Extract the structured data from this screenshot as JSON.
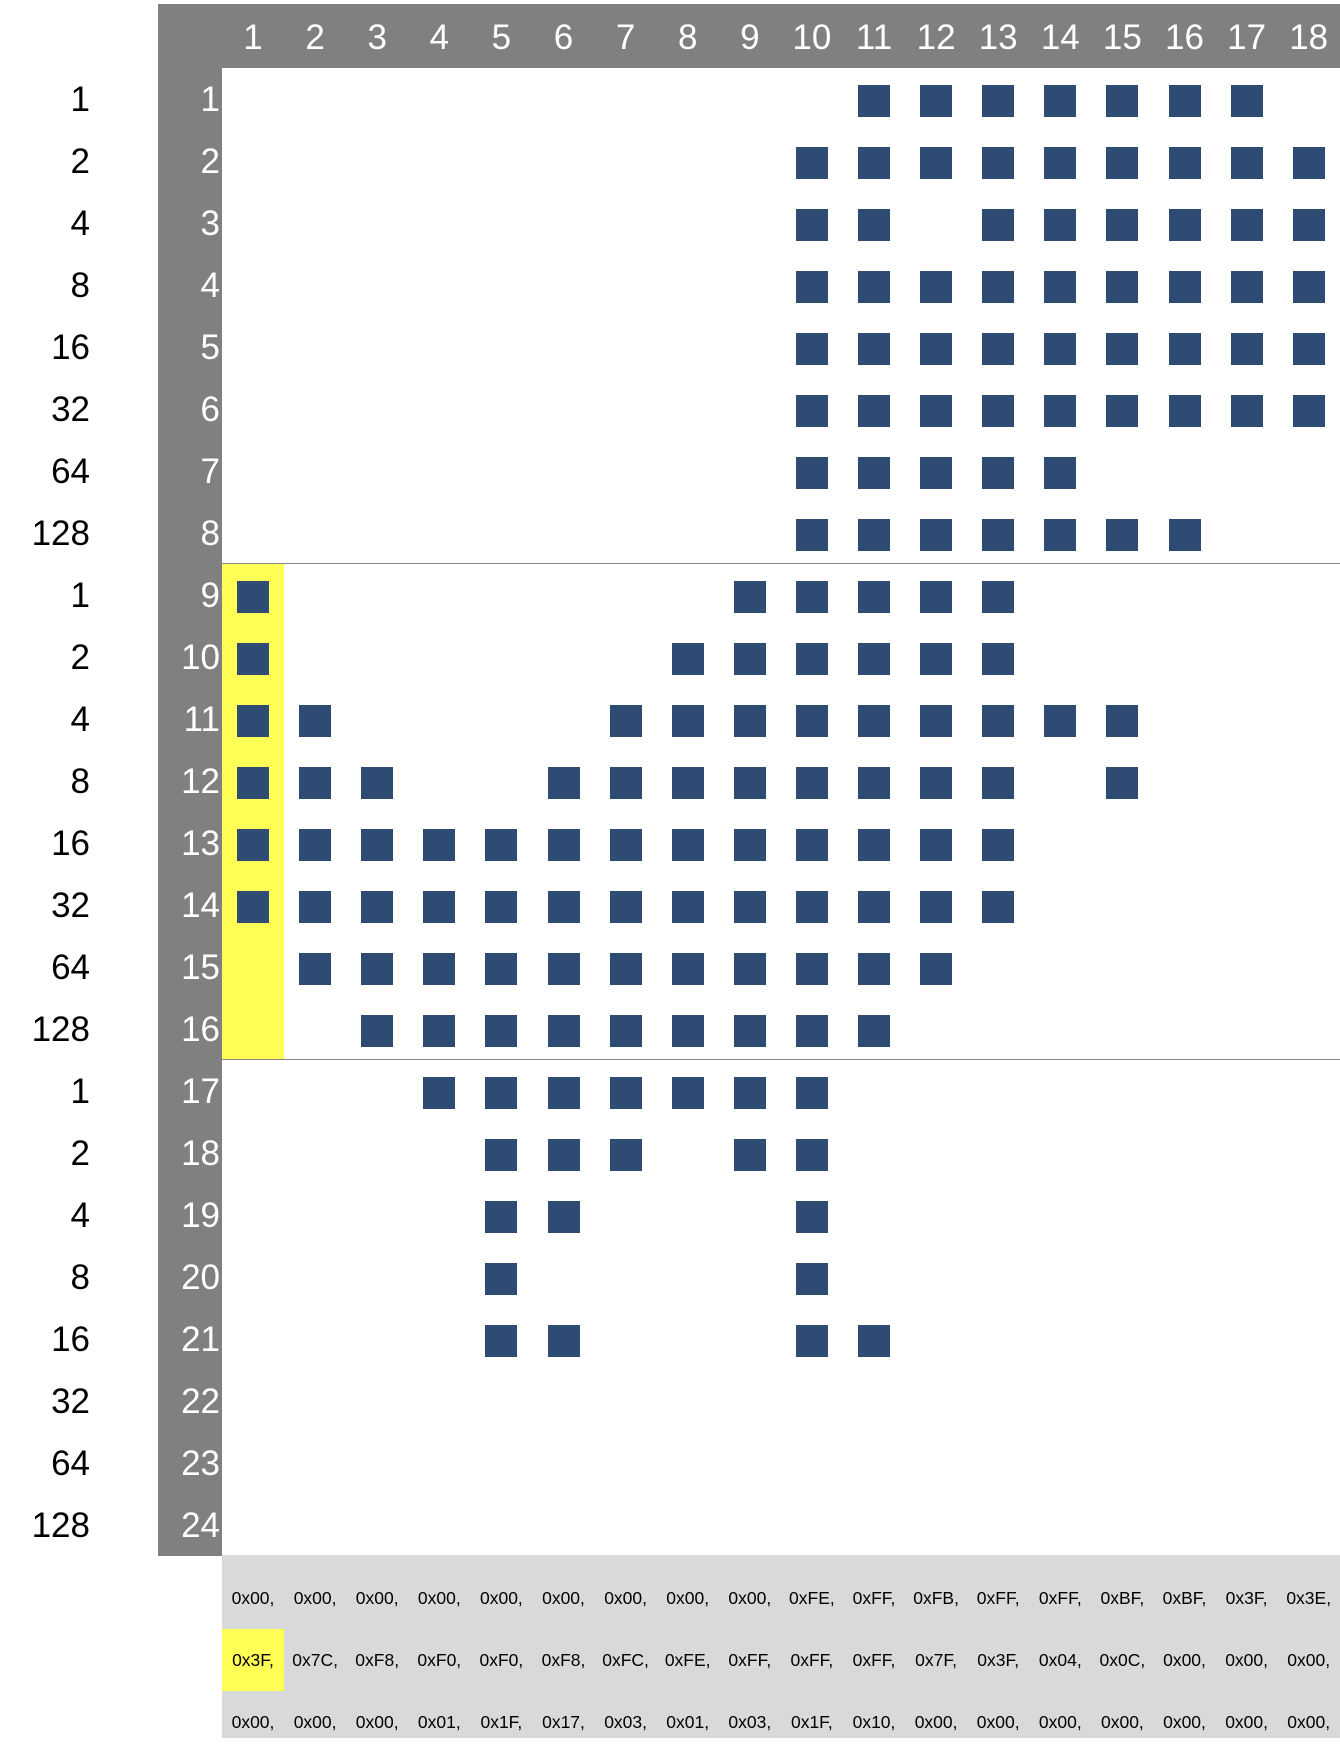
{
  "columns": [
    "1",
    "2",
    "3",
    "4",
    "5",
    "6",
    "7",
    "8",
    "9",
    "10",
    "11",
    "12",
    "13",
    "14",
    "15",
    "16",
    "17",
    "18"
  ],
  "rows": [
    "1",
    "2",
    "3",
    "4",
    "5",
    "6",
    "7",
    "8",
    "9",
    "10",
    "11",
    "12",
    "13",
    "14",
    "15",
    "16",
    "17",
    "18",
    "19",
    "20",
    "21",
    "22",
    "23",
    "24"
  ],
  "bit_weights": [
    "1",
    "2",
    "4",
    "8",
    "16",
    "32",
    "64",
    "128",
    "1",
    "2",
    "4",
    "8",
    "16",
    "32",
    "64",
    "128",
    "1",
    "2",
    "4",
    "8",
    "16",
    "32",
    "64",
    "128"
  ],
  "pixels": [
    "..........#######.",
    ".........#########",
    ".........##.######",
    ".........#########",
    ".........#########",
    ".........#########",
    ".........#####....",
    ".........#######..",
    "#.......#####.....",
    "#......######.....",
    "##....#########...",
    "###..########.#...",
    "#############.....",
    "#############.....",
    ".###########......",
    "..#########.......",
    "...#######........",
    "....###.##........",
    "....##...#........",
    "....#....#........",
    "....##...##.......",
    "..................",
    "..................",
    ".................."
  ],
  "highlight": {
    "column": 1,
    "byte_row": 2,
    "hex_row": 2,
    "hex_col": 1
  },
  "hex_rows": [
    [
      "0x00,",
      "0x00,",
      "0x00,",
      "0x00,",
      "0x00,",
      "0x00,",
      "0x00,",
      "0x00,",
      "0x00,",
      "0xFE,",
      "0xFF,",
      "0xFB,",
      "0xFF,",
      "0xFF,",
      "0xBF,",
      "0xBF,",
      "0x3F,",
      "0x3E,"
    ],
    [
      "0x3F,",
      "0x7C,",
      "0xF8,",
      "0xF0,",
      "0xF0,",
      "0xF8,",
      "0xFC,",
      "0xFE,",
      "0xFF,",
      "0xFF,",
      "0xFF,",
      "0x7F,",
      "0x3F,",
      "0x04,",
      "0x0C,",
      "0x00,",
      "0x00,",
      "0x00,"
    ],
    [
      "0x00,",
      "0x00,",
      "0x00,",
      "0x01,",
      "0x1F,",
      "0x17,",
      "0x03,",
      "0x01,",
      "0x03,",
      "0x1F,",
      "0x10,",
      "0x00,",
      "0x00,",
      "0x00,",
      "0x00,",
      "0x00,",
      "0x00,",
      "0x00,"
    ]
  ],
  "colors": {
    "frame": "#808080",
    "pixel": "#2e4b73",
    "highlight": "#ffff55",
    "hex_bg": "#d9d9d9"
  }
}
